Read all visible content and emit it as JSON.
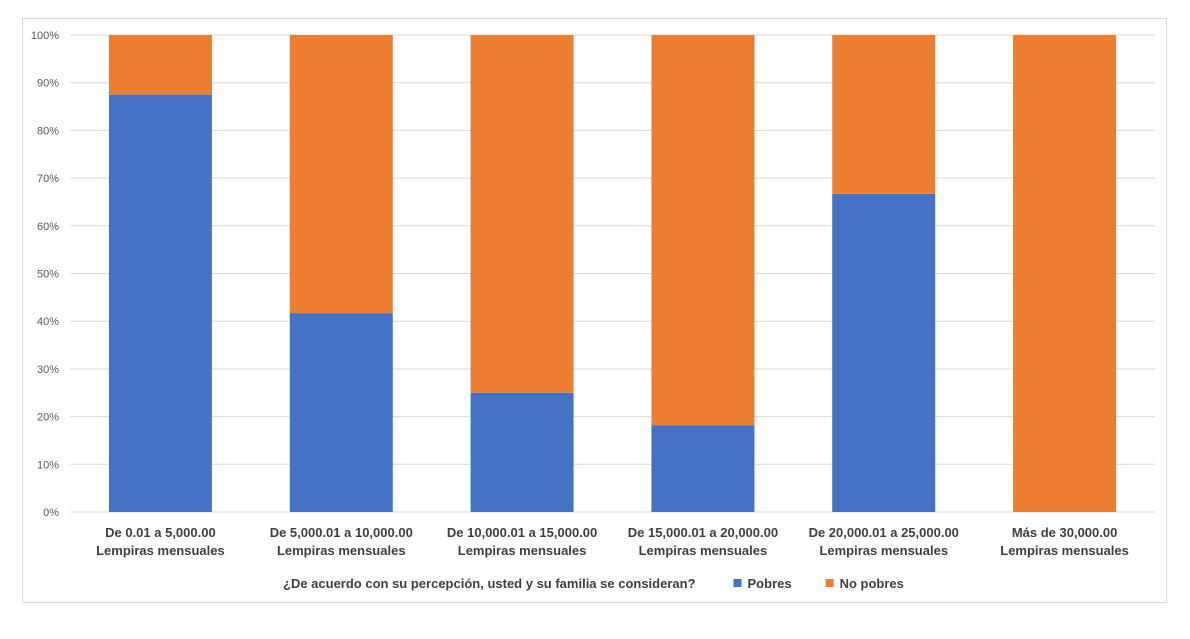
{
  "chart_data": {
    "type": "bar",
    "stacked": true,
    "percent_axis": true,
    "categories": [
      [
        "De 0.01 a 5,000.00",
        "Lempiras mensuales"
      ],
      [
        "De 5,000.01 a 10,000.00",
        "Lempiras mensuales"
      ],
      [
        "De 10,000.01 a 15,000.00",
        "Lempiras mensuales"
      ],
      [
        "De 15,000.01 a 20,000.00",
        "Lempiras mensuales"
      ],
      [
        "De 20,000.01 a 25,000.00",
        "Lempiras mensuales"
      ],
      [
        "Más de 30,000.00",
        "Lempiras mensuales"
      ]
    ],
    "series": [
      {
        "name": "Pobres",
        "color": "#4472c4",
        "values": [
          87.5,
          41.7,
          25.0,
          18.2,
          66.7,
          0
        ]
      },
      {
        "name": "No pobres",
        "color": "#ed7d31",
        "values": [
          12.5,
          58.3,
          75.0,
          81.8,
          33.3,
          100
        ]
      }
    ],
    "ylim": [
      0,
      100
    ],
    "yticks": [
      "0%",
      "10%",
      "20%",
      "30%",
      "40%",
      "50%",
      "60%",
      "70%",
      "80%",
      "90%",
      "100%"
    ],
    "grid": true,
    "legend_title": "¿De acuerdo con su percepción, usted y su familia se consideran?",
    "legend_position": "bottom"
  }
}
